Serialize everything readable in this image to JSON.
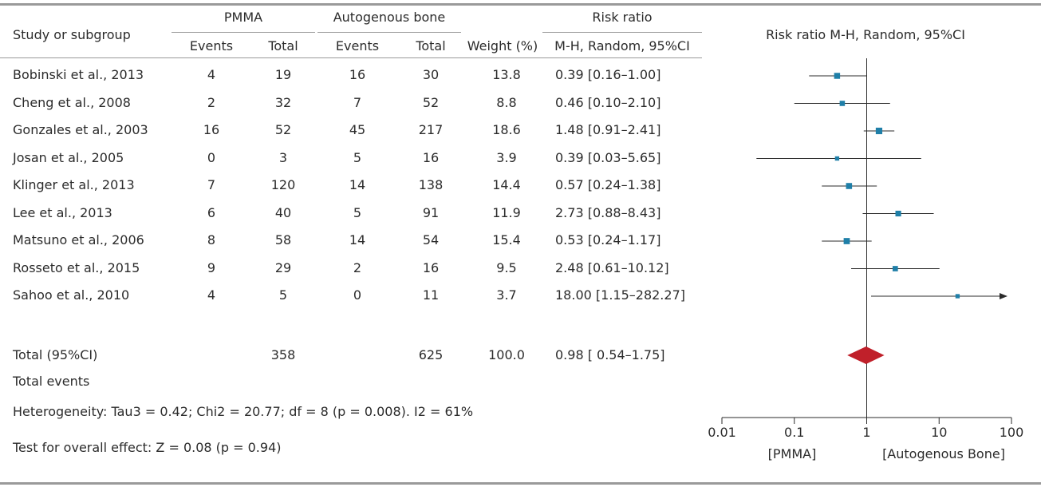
{
  "header": {
    "study_col": "Study or subgroup",
    "group1": "PMMA",
    "group2": "Autogenous bone",
    "rr_col": "Risk ratio",
    "events": "Events",
    "total": "Total",
    "weight": "Weight (%)",
    "method": "M-H, Random, 95%CI",
    "plot_title": "Risk ratio M-H, Random, 95%CI"
  },
  "footer": {
    "total_events": "Total events",
    "heterogeneity": "Heterogeneity: Tau3 = 0.42; Chi2 = 20.77; df = 8 (p = 0.008). I2 = 61%",
    "overall_effect": "Test for overall effect: Z = 0.08 (p = 0.94)"
  },
  "chart_data": {
    "type": "forest",
    "x_scale": "log",
    "xlim": [
      0.01,
      100
    ],
    "x_ticks": [
      "0.01",
      "0.1",
      "1",
      "10",
      "100"
    ],
    "x_tick_values": [
      0.01,
      0.1,
      1,
      10,
      100
    ],
    "left_label": "[PMMA]",
    "right_label": "[Autogenous Bone]",
    "marker_color": "#1f7fa8",
    "diamond_color": "#c0202a",
    "studies": [
      {
        "name": "Bobinski et al., 2013",
        "e1": "4",
        "t1": "19",
        "e2": "16",
        "t2": "30",
        "weight": "13.8",
        "ci_text": "0.39 [0.16–1.00]",
        "rr": 0.39,
        "lo": 0.16,
        "hi": 1.0
      },
      {
        "name": "Cheng et al., 2008",
        "e1": "2",
        "t1": "32",
        "e2": "7",
        "t2": "52",
        "weight": "8.8",
        "ci_text": "0.46 [0.10–2.10]",
        "rr": 0.46,
        "lo": 0.1,
        "hi": 2.1
      },
      {
        "name": "Gonzales et al., 2003",
        "e1": "16",
        "t1": "52",
        "e2": "45",
        "t2": "217",
        "weight": "18.6",
        "ci_text": "1.48 [0.91–2.41]",
        "rr": 1.48,
        "lo": 0.91,
        "hi": 2.41
      },
      {
        "name": "Josan et al., 2005",
        "e1": "0",
        "t1": "3",
        "e2": "5",
        "t2": "16",
        "weight": "3.9",
        "ci_text": "0.39 [0.03–5.65]",
        "rr": 0.39,
        "lo": 0.03,
        "hi": 5.65
      },
      {
        "name": "Klinger et al., 2013",
        "e1": "7",
        "t1": "120",
        "e2": "14",
        "t2": "138",
        "weight": "14.4",
        "ci_text": "0.57 [0.24–1.38]",
        "rr": 0.57,
        "lo": 0.24,
        "hi": 1.38
      },
      {
        "name": "Lee et al., 2013",
        "e1": "6",
        "t1": "40",
        "e2": "5",
        "t2": "91",
        "weight": "11.9",
        "ci_text": "2.73 [0.88–8.43]",
        "rr": 2.73,
        "lo": 0.88,
        "hi": 8.43
      },
      {
        "name": "Matsuno et al., 2006",
        "e1": "8",
        "t1": "58",
        "e2": "14",
        "t2": "54",
        "weight": "15.4",
        "ci_text": "0.53 [0.24–1.17]",
        "rr": 0.53,
        "lo": 0.24,
        "hi": 1.17
      },
      {
        "name": "Rosseto et al., 2015",
        "e1": "9",
        "t1": "29",
        "e2": "2",
        "t2": "16",
        "weight": "9.5",
        "ci_text": "2.48  [0.61–10.12]",
        "rr": 2.48,
        "lo": 0.61,
        "hi": 10.12
      },
      {
        "name": "Sahoo et al., 2010",
        "e1": "4",
        "t1": "5",
        "e2": "0",
        "t2": "11",
        "weight": "3.7",
        "ci_text": "18.00 [1.15–282.27]",
        "rr": 18.0,
        "lo": 1.15,
        "hi": 282.27
      }
    ],
    "total": {
      "name": "Total (95%CI)",
      "t1": "358",
      "t2": "625",
      "weight": "100.0",
      "ci_text": "0.98 [ 0.54–1.75]",
      "rr": 0.98,
      "lo": 0.54,
      "hi": 1.75
    }
  }
}
